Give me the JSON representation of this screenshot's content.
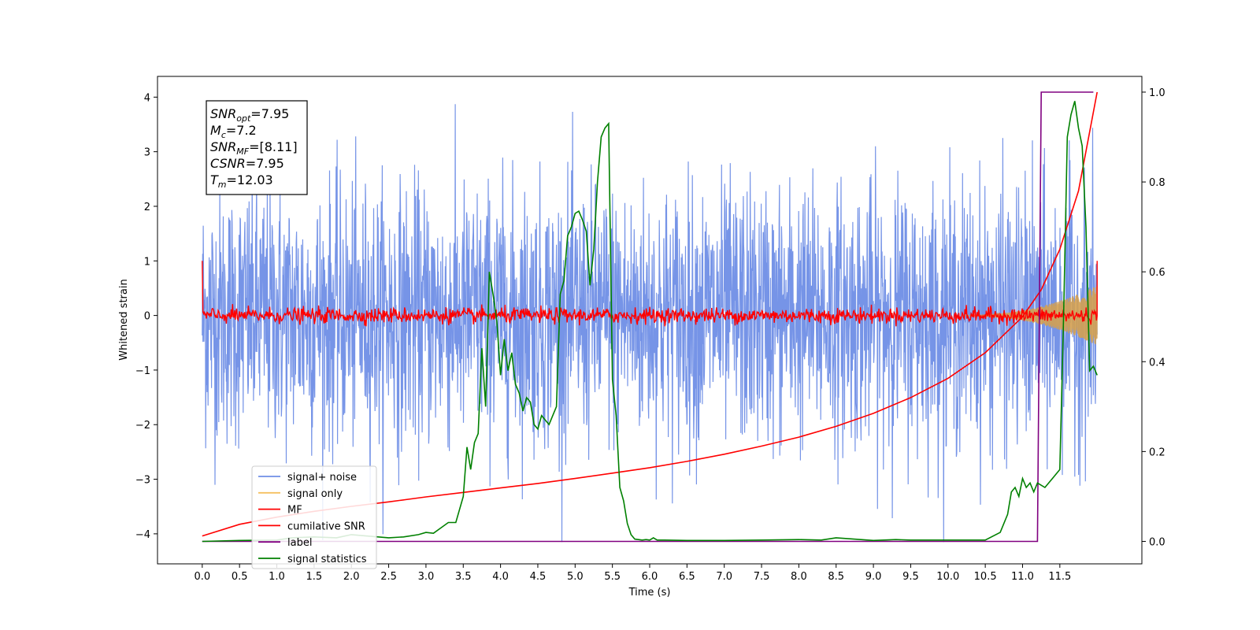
{
  "chart_data": {
    "type": "line",
    "xlabel": "Time (s)",
    "ylabel": "Whitened strain",
    "xlim": [
      -0.6,
      12.6
    ],
    "ylim": [
      -4.55,
      4.38
    ],
    "y2lim": [
      -0.05,
      1.035
    ],
    "x_ticks": [
      0.0,
      0.5,
      1.0,
      1.5,
      2.0,
      2.5,
      3.0,
      3.5,
      4.0,
      4.5,
      5.0,
      5.5,
      6.0,
      6.5,
      7.0,
      7.5,
      8.0,
      8.5,
      9.0,
      9.5,
      10.0,
      10.5,
      11.0,
      11.5
    ],
    "x_tick_labels": [
      "0.0",
      "0.5",
      "1.0",
      "1.5",
      "2.0",
      "2.5",
      "3.0",
      "3.5",
      "4.0",
      "4.5",
      "5.0",
      "5.5",
      "6.0",
      "6.5",
      "7.0",
      "7.5",
      "8.0",
      "8.5",
      "9.0",
      "9.5",
      "10.0",
      "10.5",
      "11.0",
      "11.5"
    ],
    "y_ticks": [
      -4,
      -3,
      -2,
      -1,
      0,
      1,
      2,
      3,
      4
    ],
    "y_tick_labels": [
      "−4",
      "−3",
      "−2",
      "−1",
      "0",
      "1",
      "2",
      "3",
      "4"
    ],
    "y2_ticks": [
      0.0,
      0.2,
      0.4,
      0.6,
      0.8,
      1.0
    ],
    "y2_tick_labels": [
      "0.0",
      "0.2",
      "0.4",
      "0.6",
      "0.8",
      "1.0"
    ],
    "legend_position": "lower-left",
    "legend": [
      {
        "label": "signal+ noise",
        "color": "#6f8ee6"
      },
      {
        "label": "signal only",
        "color": "#f5c060"
      },
      {
        "label": "MF",
        "color": "#ff0000"
      },
      {
        "label": "cumilative SNR",
        "color": "#ff0000"
      },
      {
        "label": "label",
        "color": "#800080"
      },
      {
        "label": "signal statistics",
        "color": "#008000"
      }
    ],
    "series": [
      {
        "name": "signal+ noise",
        "color": "#6f8ee6",
        "axis": "left",
        "kind": "noise",
        "x_range": [
          0.0,
          12.0
        ],
        "typical_range": [
          -2.6,
          2.6
        ],
        "extreme_range": [
          -4.15,
          3.95
        ]
      },
      {
        "name": "signal only",
        "color": "#d4a050",
        "axis": "left",
        "kind": "chirp",
        "x_range": [
          10.2,
          12.0
        ],
        "amplitude_at_end": 0.55
      },
      {
        "name": "MF",
        "color": "#ff0000",
        "axis": "left",
        "kind": "noise",
        "x_range": [
          0.0,
          12.0
        ],
        "typical_range": [
          -0.18,
          0.2
        ],
        "endpoint_values": [
          1.0,
          1.0
        ]
      },
      {
        "name": "cumilative SNR",
        "color": "#ff0000",
        "axis": "right",
        "x": [
          0.0,
          0.5,
          1.0,
          1.5,
          2.0,
          2.5,
          3.0,
          3.5,
          4.0,
          4.5,
          5.0,
          5.5,
          6.0,
          6.5,
          7.0,
          7.5,
          8.0,
          8.5,
          9.0,
          9.5,
          10.0,
          10.5,
          11.0,
          11.25,
          11.5,
          11.75,
          12.0
        ],
        "values": [
          0.012,
          0.038,
          0.054,
          0.067,
          0.078,
          0.088,
          0.099,
          0.109,
          0.119,
          0.129,
          0.14,
          0.152,
          0.164,
          0.178,
          0.194,
          0.212,
          0.232,
          0.256,
          0.285,
          0.32,
          0.363,
          0.42,
          0.5,
          0.56,
          0.65,
          0.78,
          1.0
        ]
      },
      {
        "name": "label",
        "color": "#800080",
        "axis": "right",
        "x": [
          0.0,
          11.2,
          11.25,
          11.95
        ],
        "values": [
          0.0,
          0.0,
          1.0,
          1.0
        ]
      },
      {
        "name": "signal statistics",
        "color": "#008000",
        "axis": "right",
        "x": [
          0.0,
          0.5,
          1.0,
          1.2,
          1.5,
          1.8,
          2.0,
          2.2,
          2.5,
          2.7,
          2.9,
          3.0,
          3.1,
          3.2,
          3.3,
          3.4,
          3.5,
          3.55,
          3.6,
          3.65,
          3.7,
          3.75,
          3.8,
          3.85,
          3.9,
          3.95,
          4.0,
          4.05,
          4.1,
          4.15,
          4.2,
          4.25,
          4.3,
          4.35,
          4.4,
          4.45,
          4.5,
          4.55,
          4.6,
          4.65,
          4.7,
          4.75,
          4.8,
          4.85,
          4.9,
          4.95,
          5.0,
          5.05,
          5.1,
          5.15,
          5.2,
          5.25,
          5.3,
          5.35,
          5.4,
          5.45,
          5.5,
          5.55,
          5.6,
          5.65,
          5.7,
          5.75,
          5.8,
          5.85,
          5.9,
          5.95,
          6.0,
          6.05,
          6.1,
          6.2,
          6.5,
          7.0,
          7.5,
          8.0,
          8.3,
          8.5,
          9.0,
          9.3,
          9.5,
          10.0,
          10.5,
          10.7,
          10.8,
          10.85,
          10.9,
          10.95,
          11.0,
          11.05,
          11.1,
          11.15,
          11.2,
          11.3,
          11.4,
          11.5,
          11.55,
          11.6,
          11.65,
          11.7,
          11.75,
          11.8,
          11.85,
          11.9,
          11.95,
          12.0
        ],
        "values": [
          0.0,
          0.002,
          0.003,
          0.008,
          0.01,
          0.008,
          0.015,
          0.012,
          0.008,
          0.01,
          0.015,
          0.02,
          0.018,
          0.03,
          0.042,
          0.042,
          0.1,
          0.21,
          0.16,
          0.22,
          0.24,
          0.43,
          0.3,
          0.6,
          0.55,
          0.49,
          0.37,
          0.45,
          0.38,
          0.42,
          0.35,
          0.33,
          0.29,
          0.32,
          0.31,
          0.26,
          0.25,
          0.28,
          0.27,
          0.26,
          0.28,
          0.3,
          0.55,
          0.58,
          0.68,
          0.7,
          0.73,
          0.735,
          0.715,
          0.69,
          0.57,
          0.65,
          0.8,
          0.9,
          0.92,
          0.93,
          0.36,
          0.28,
          0.12,
          0.09,
          0.04,
          0.015,
          0.005,
          0.004,
          0.003,
          0.004,
          0.003,
          0.008,
          0.003,
          0.003,
          0.002,
          0.002,
          0.003,
          0.004,
          0.003,
          0.008,
          0.002,
          0.004,
          0.003,
          0.003,
          0.003,
          0.02,
          0.06,
          0.11,
          0.12,
          0.1,
          0.14,
          0.12,
          0.13,
          0.11,
          0.13,
          0.12,
          0.14,
          0.16,
          0.5,
          0.9,
          0.95,
          0.98,
          0.92,
          0.88,
          0.7,
          0.38,
          0.39,
          0.37
        ]
      }
    ],
    "textbox": [
      {
        "base": "SNR",
        "sub": "opt",
        "value": "=7.95"
      },
      {
        "base": "M",
        "sub": "c",
        "value": "=7.2"
      },
      {
        "base": "SNR",
        "sub": "MF",
        "value": "=[8.11]"
      },
      {
        "base": "CSNR",
        "sub": "",
        "value": "=7.95"
      },
      {
        "base": "T",
        "sub": "m",
        "value": "=12.03"
      }
    ]
  }
}
